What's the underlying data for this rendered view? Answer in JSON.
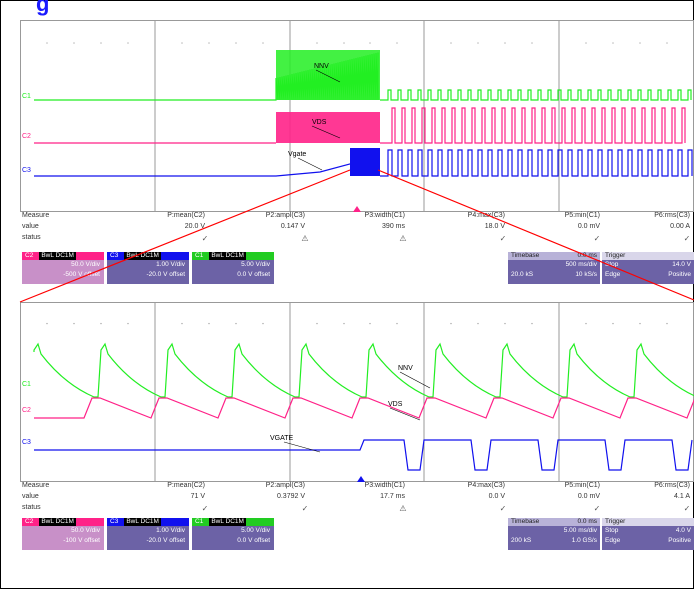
{
  "title": "g",
  "colors": {
    "ch1": "#22ee22",
    "ch2": "#ff2288",
    "ch3": "#1111ee",
    "grid": "#999999",
    "zoom_line": "#ff0000"
  },
  "chart_data": [
    {
      "type": "line",
      "panel": "overview",
      "series": [
        {
          "name": "NNV",
          "channel": "C1",
          "color": "#22ee22",
          "shape": "startup_burst_then_pulses"
        },
        {
          "name": "VDS",
          "channel": "C2",
          "color": "#ff2288",
          "shape": "startup_burst_then_pulses"
        },
        {
          "name": "Vgate",
          "channel": "C3",
          "color": "#1111ee",
          "shape": "ramp_then_pulses"
        }
      ],
      "channel_markers": [
        "C1",
        "C2",
        "C3"
      ],
      "grid": true
    },
    {
      "type": "line",
      "panel": "zoom",
      "series": [
        {
          "name": "NNV",
          "channel": "C1",
          "color": "#22ee22",
          "shape": "sawtooth_decay"
        },
        {
          "name": "VDS",
          "channel": "C2",
          "color": "#ff2288",
          "shape": "square"
        },
        {
          "name": "VGATE",
          "channel": "C3",
          "color": "#1111ee",
          "shape": "square"
        }
      ],
      "channel_markers": [
        "C1",
        "C2",
        "C3"
      ],
      "grid": true
    }
  ],
  "measure_top": {
    "labels": [
      "Measure",
      "value",
      "status"
    ],
    "cols": [
      {
        "name": "P:mean(C2)",
        "value": "20.0 V",
        "status": "check"
      },
      {
        "name": "P2:ampl(C3)",
        "value": "0.147 V",
        "status": "warn"
      },
      {
        "name": "P3:width(C1)",
        "value": "390 ms",
        "status": "warn"
      },
      {
        "name": "P4:max(C3)",
        "value": "18.0 V",
        "status": "check"
      },
      {
        "name": "P5:min(C1)",
        "value": "0.0 mV",
        "status": "check"
      },
      {
        "name": "P6:rms(C3)",
        "value": "0.00 A",
        "status": "check"
      }
    ]
  },
  "measure_bottom": {
    "labels": [
      "Measure",
      "value",
      "status"
    ],
    "cols": [
      {
        "name": "P:mean(C2)",
        "value": "71 V",
        "status": "check"
      },
      {
        "name": "P2:ampl(C3)",
        "value": "0.3792 V",
        "status": "check"
      },
      {
        "name": "P3:width(C1)",
        "value": "17.7 ms",
        "status": "warn"
      },
      {
        "name": "P4:max(C3)",
        "value": "0.0 V",
        "status": "check"
      },
      {
        "name": "P5:min(C1)",
        "value": "0.0 mV",
        "status": "check"
      },
      {
        "name": "P6:rms(C3)",
        "value": "4.1 A",
        "status": "check"
      }
    ]
  },
  "channels_top": [
    {
      "label": "C2",
      "tag": "BwL DC1M",
      "line1": "50.0 V/div",
      "line2": "-500 V offset",
      "hdr_color": "#ff2288",
      "body_color": "#c890c8"
    },
    {
      "label": "C3",
      "tag": "BwL DC1M",
      "line1": "1.00 V/div",
      "line2": "-20.0 V offset",
      "hdr_color": "#1111ee",
      "body_color": "#6c62a6"
    },
    {
      "label": "C1",
      "tag": "BwL DC1M",
      "line1": "5.00 V/div",
      "line2": "0.0 V offset",
      "hdr_color": "#22cc22",
      "body_color": "#6c62a6"
    }
  ],
  "channels_bottom": [
    {
      "label": "C2",
      "tag": "BwL DC1M",
      "line1": "50.0 V/div",
      "line2": "-100 V offset",
      "hdr_color": "#ff2288",
      "body_color": "#c890c8"
    },
    {
      "label": "C3",
      "tag": "BwL DC1M",
      "line1": "1.00 V/div",
      "line2": "-20.0 V offset",
      "hdr_color": "#1111ee",
      "body_color": "#6c62a6"
    },
    {
      "label": "C1",
      "tag": "BwL DC1M",
      "line1": "5.00 V/div",
      "line2": "0.0 V offset",
      "hdr_color": "#22cc22",
      "body_color": "#6c62a6"
    }
  ],
  "timebase_top": {
    "hdr": "Timebase",
    "hdr_val": "0.0 ms",
    "line1": "500 ms/div",
    "line2_a": "20.0 kS",
    "line2_b": "10 kS/s"
  },
  "trigger_top": {
    "hdr": "Trigger",
    "line1_a": "Stop",
    "line1_b": "14.0 V",
    "line2_a": "Edge",
    "line2_b": "Positive"
  },
  "timebase_bottom": {
    "hdr": "Timebase",
    "hdr_val": "0.0 ms",
    "line1": "5.00 ms/div",
    "line2_a": "200 kS",
    "line2_b": "1.0 GS/s"
  },
  "trigger_bottom": {
    "hdr": "Trigger",
    "line1_a": "Stop",
    "line1_b": "4.0 V",
    "line2_a": "Edge",
    "line2_b": "Positive"
  }
}
